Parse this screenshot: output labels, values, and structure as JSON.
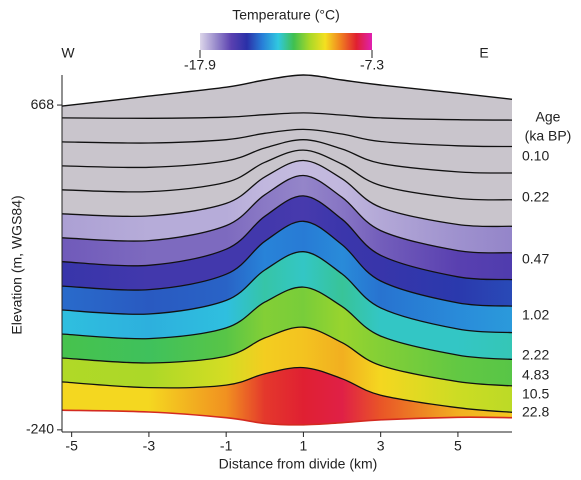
{
  "chart_data": {
    "type": "section",
    "title": "Temperature (°C)",
    "colorbar": {
      "clim": [
        -17.9,
        -7.3
      ],
      "ticks": [
        -17.9,
        -7.3
      ],
      "colors": [
        "#dcd6ea",
        "#9a8ccc",
        "#5a40b0",
        "#2a30a8",
        "#2880d8",
        "#30c8e0",
        "#40c050",
        "#a8d828",
        "#f4e020",
        "#f08020",
        "#e02030",
        "#e020b0"
      ]
    },
    "west_label": "W",
    "east_label": "E",
    "xlabel": "Distance from divide (km)",
    "ylabel": "Elevation (m, WGS84)",
    "xlim": [
      -5.25,
      6.4
    ],
    "xticks": [
      -5,
      -3,
      -1,
      1,
      3,
      5
    ],
    "ylim": [
      -246,
      752
    ],
    "yticks": [
      -240,
      668
    ],
    "x": [
      -5.25,
      -3,
      -1,
      0,
      1,
      2,
      3,
      5,
      6.4
    ],
    "surface": [
      665,
      693,
      718,
      738,
      752,
      738,
      724,
      701,
      684
    ],
    "bed": [
      -185,
      -190,
      -206,
      -222,
      -226,
      -220,
      -212,
      -205,
      -206
    ],
    "bed_temperature": [
      -9.6,
      -9.6,
      -8.8,
      -7.8,
      -7.5,
      -7.4,
      -8.2,
      -9.2,
      -9.5
    ],
    "isochrones": [
      {
        "elevation": [
          632,
          631,
          634,
          641,
          646,
          640,
          632,
          627,
          626
        ],
        "temperature": [
          null,
          null,
          null,
          null,
          null,
          null,
          null,
          null,
          null
        ]
      },
      {
        "elevation": [
          565,
          562,
          571,
          589,
          600,
          587,
          566,
          554,
          552
        ],
        "temperature": [
          null,
          null,
          null,
          null,
          null,
          null,
          null,
          null,
          null
        ]
      },
      {
        "elevation": [
          498,
          494,
          512,
          548,
          571,
          545,
          505,
          481,
          478
        ],
        "temperature": [
          null,
          null,
          null,
          null,
          null,
          null,
          null,
          null,
          null
        ]
      },
      {
        "elevation": [
          431,
          426,
          452,
          508,
          542,
          503,
          443,
          407,
          403
        ],
        "temperature": [
          null,
          null,
          null,
          null,
          null,
          null,
          null,
          null,
          null
        ]
      },
      {
        "elevation": [
          364,
          358,
          393,
          467,
          513,
          462,
          382,
          334,
          329
        ],
        "temperature": [
          -17.6,
          -17.7,
          -17.7,
          -17.8,
          -17.8,
          -17.8,
          -17.7,
          -17.5,
          -17.4
        ]
      },
      {
        "elevation": [
          297,
          289,
          331,
          417,
          471,
          410,
          317,
          261,
          255
        ],
        "temperature": [
          -16.8,
          -17,
          -17,
          -17.2,
          -17.3,
          -17.2,
          -16.9,
          -16.5,
          -16.3
        ]
      },
      {
        "elevation": [
          230,
          220,
          265,
          357,
          414,
          349,
          248,
          188,
          180
        ],
        "temperature": [
          -15.8,
          -16,
          -16,
          -16.2,
          -16.4,
          -16.1,
          -15.8,
          -15.4,
          -15.2
        ]
      },
      {
        "elevation": [
          162,
          152,
          195,
          287,
          343,
          278,
          176,
          115,
          106
        ],
        "temperature": [
          -14.8,
          -15,
          -15,
          -14.8,
          -14.8,
          -14.6,
          -14.8,
          -14.4,
          -14.2
        ]
      },
      {
        "elevation": [
          95,
          84,
          122,
          207,
          258,
          196,
          101,
          42,
          32
        ],
        "temperature": [
          -13.8,
          -14,
          -13.8,
          -13.2,
          -13.4,
          -13.2,
          -13.6,
          -13.4,
          -13.2
        ]
      },
      {
        "elevation": [
          28,
          15,
          45,
          117,
          159,
          105,
          22,
          -31,
          -43
        ],
        "temperature": [
          -12.6,
          -12.8,
          -12.6,
          -12.2,
          -12.4,
          -12,
          -12.2,
          -12.4,
          -12.4
        ]
      },
      {
        "elevation": [
          -39,
          -53,
          -34,
          17,
          47,
          4,
          -60,
          -105,
          -117
        ],
        "temperature": [
          -11.5,
          -11.6,
          -11.2,
          -10.8,
          -10.8,
          -10.6,
          -10.8,
          -11.2,
          -11.4
        ]
      },
      {
        "elevation": [
          -106,
          -122,
          -115,
          -83,
          -66,
          -97,
          -143,
          -178,
          -191
        ],
        "temperature": [
          -10.6,
          -10.6,
          -10,
          -9.2,
          -9,
          -8.8,
          -9.4,
          -10.2,
          -10.4
        ]
      }
    ],
    "null_color": "#c9c5cc",
    "isochrone_color": "#111111",
    "bed_color": "#d42a20",
    "age_title": "Age",
    "age_unit": "(ka BP)",
    "age_labels": [
      "0.10",
      "0.22",
      "0.47",
      "1.02",
      "2.22",
      "4.83",
      "10.5",
      "22.8"
    ]
  }
}
